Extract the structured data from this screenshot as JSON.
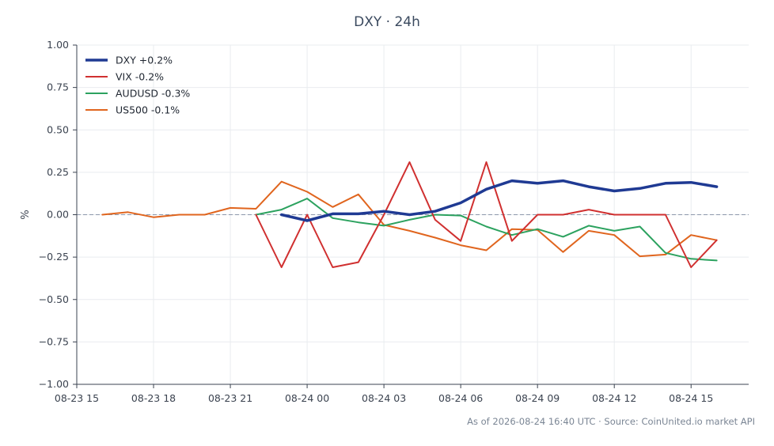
{
  "title": "DXY · 24h",
  "footer": "As of 2026-08-24 16:40 UTC · Source: CoinUnited.io market API",
  "chart_data": {
    "type": "line",
    "title": "DXY · 24h",
    "xlabel": "",
    "ylabel": "%",
    "ylim": [
      -1.0,
      1.0
    ],
    "yticks": [
      1.0,
      0.75,
      0.5,
      0.25,
      0.0,
      -0.25,
      -0.5,
      -0.75,
      -1.0
    ],
    "ytick_labels": [
      "1.00",
      "0.75",
      "0.50",
      "0.25",
      "0.00",
      "−0.25",
      "−0.50",
      "−0.75",
      "−1.00"
    ],
    "xlim": [
      "08-23 15:00",
      "08-24 17:15"
    ],
    "xticks": [
      "08-23 15",
      "08-23 18",
      "08-23 21",
      "08-24 00",
      "08-24 03",
      "08-24 06",
      "08-24 09",
      "08-24 12",
      "08-24 15"
    ],
    "xtick_times": [
      "08-23 15:00",
      "08-23 18:00",
      "08-23 21:00",
      "08-24 00:00",
      "08-24 03:00",
      "08-24 06:00",
      "08-24 09:00",
      "08-24 12:00",
      "08-24 15:00"
    ],
    "grid": true,
    "zero_line": true,
    "legend": "top-left",
    "series": [
      {
        "name": "DXY +0.2%",
        "color": "#1f3a93",
        "width": 3.5,
        "x": [
          "08-23 23:00",
          "08-24 00:00",
          "08-24 01:00",
          "08-24 02:00",
          "08-24 03:00",
          "08-24 04:00",
          "08-24 05:00",
          "08-24 06:00",
          "08-24 07:00",
          "08-24 08:00",
          "08-24 09:00",
          "08-24 10:00",
          "08-24 11:00",
          "08-24 12:00",
          "08-24 13:00",
          "08-24 14:00",
          "08-24 15:00",
          "08-24 16:00"
        ],
        "y": [
          0.0,
          -0.035,
          0.005,
          0.005,
          0.02,
          0.0,
          0.02,
          0.07,
          0.15,
          0.2,
          0.185,
          0.2,
          0.165,
          0.14,
          0.155,
          0.185,
          0.19,
          0.165
        ]
      },
      {
        "name": "VIX -0.2%",
        "color": "#d03030",
        "width": 2,
        "x": [
          "08-23 22:00",
          "08-23 23:00",
          "08-24 00:00",
          "08-24 01:00",
          "08-24 02:00",
          "08-24 03:00",
          "08-24 04:00",
          "08-24 05:00",
          "08-24 06:00",
          "08-24 07:00",
          "08-24 08:00",
          "08-24 09:00",
          "08-24 10:00",
          "08-24 11:00",
          "08-24 12:00",
          "08-24 13:00",
          "08-24 14:00",
          "08-24 15:00",
          "08-24 16:00"
        ],
        "y": [
          0.0,
          -0.31,
          0.0,
          -0.31,
          -0.28,
          0.0,
          0.31,
          -0.03,
          -0.155,
          0.31,
          -0.155,
          0.0,
          0.0,
          0.03,
          0.0,
          0.0,
          0.0,
          -0.31,
          -0.15
        ]
      },
      {
        "name": "AUDUSD -0.3%",
        "color": "#2ca25f",
        "width": 2,
        "x": [
          "08-23 22:00",
          "08-23 23:00",
          "08-24 00:00",
          "08-24 01:00",
          "08-24 02:00",
          "08-24 03:00",
          "08-24 04:00",
          "08-24 05:00",
          "08-24 06:00",
          "08-24 07:00",
          "08-24 08:00",
          "08-24 09:00",
          "08-24 10:00",
          "08-24 11:00",
          "08-24 12:00",
          "08-24 13:00",
          "08-24 14:00",
          "08-24 15:00",
          "08-24 16:00"
        ],
        "y": [
          0.0,
          0.03,
          0.095,
          -0.02,
          -0.045,
          -0.065,
          -0.03,
          0.0,
          -0.005,
          -0.07,
          -0.12,
          -0.085,
          -0.13,
          -0.065,
          -0.095,
          -0.07,
          -0.225,
          -0.26,
          -0.27
        ]
      },
      {
        "name": "US500 -0.1%",
        "color": "#e0651e",
        "width": 2,
        "x": [
          "08-23 16:00",
          "08-23 17:00",
          "08-23 18:00",
          "08-23 19:00",
          "08-23 20:00",
          "08-23 21:00",
          "08-23 22:00",
          "08-23 23:00",
          "08-24 00:00",
          "08-24 01:00",
          "08-24 02:00",
          "08-24 03:00",
          "08-24 04:00",
          "08-24 05:00",
          "08-24 06:00",
          "08-24 07:00",
          "08-24 08:00",
          "08-24 09:00",
          "08-24 10:00",
          "08-24 11:00",
          "08-24 12:00",
          "08-24 13:00",
          "08-24 14:00",
          "08-24 15:00",
          "08-24 16:00"
        ],
        "y": [
          0.0,
          0.015,
          -0.015,
          0.0,
          0.0,
          0.04,
          0.035,
          0.195,
          0.135,
          0.045,
          0.12,
          -0.06,
          -0.095,
          -0.135,
          -0.18,
          -0.21,
          -0.085,
          -0.09,
          -0.22,
          -0.095,
          -0.12,
          -0.245,
          -0.235,
          -0.12,
          -0.15
        ]
      }
    ]
  }
}
